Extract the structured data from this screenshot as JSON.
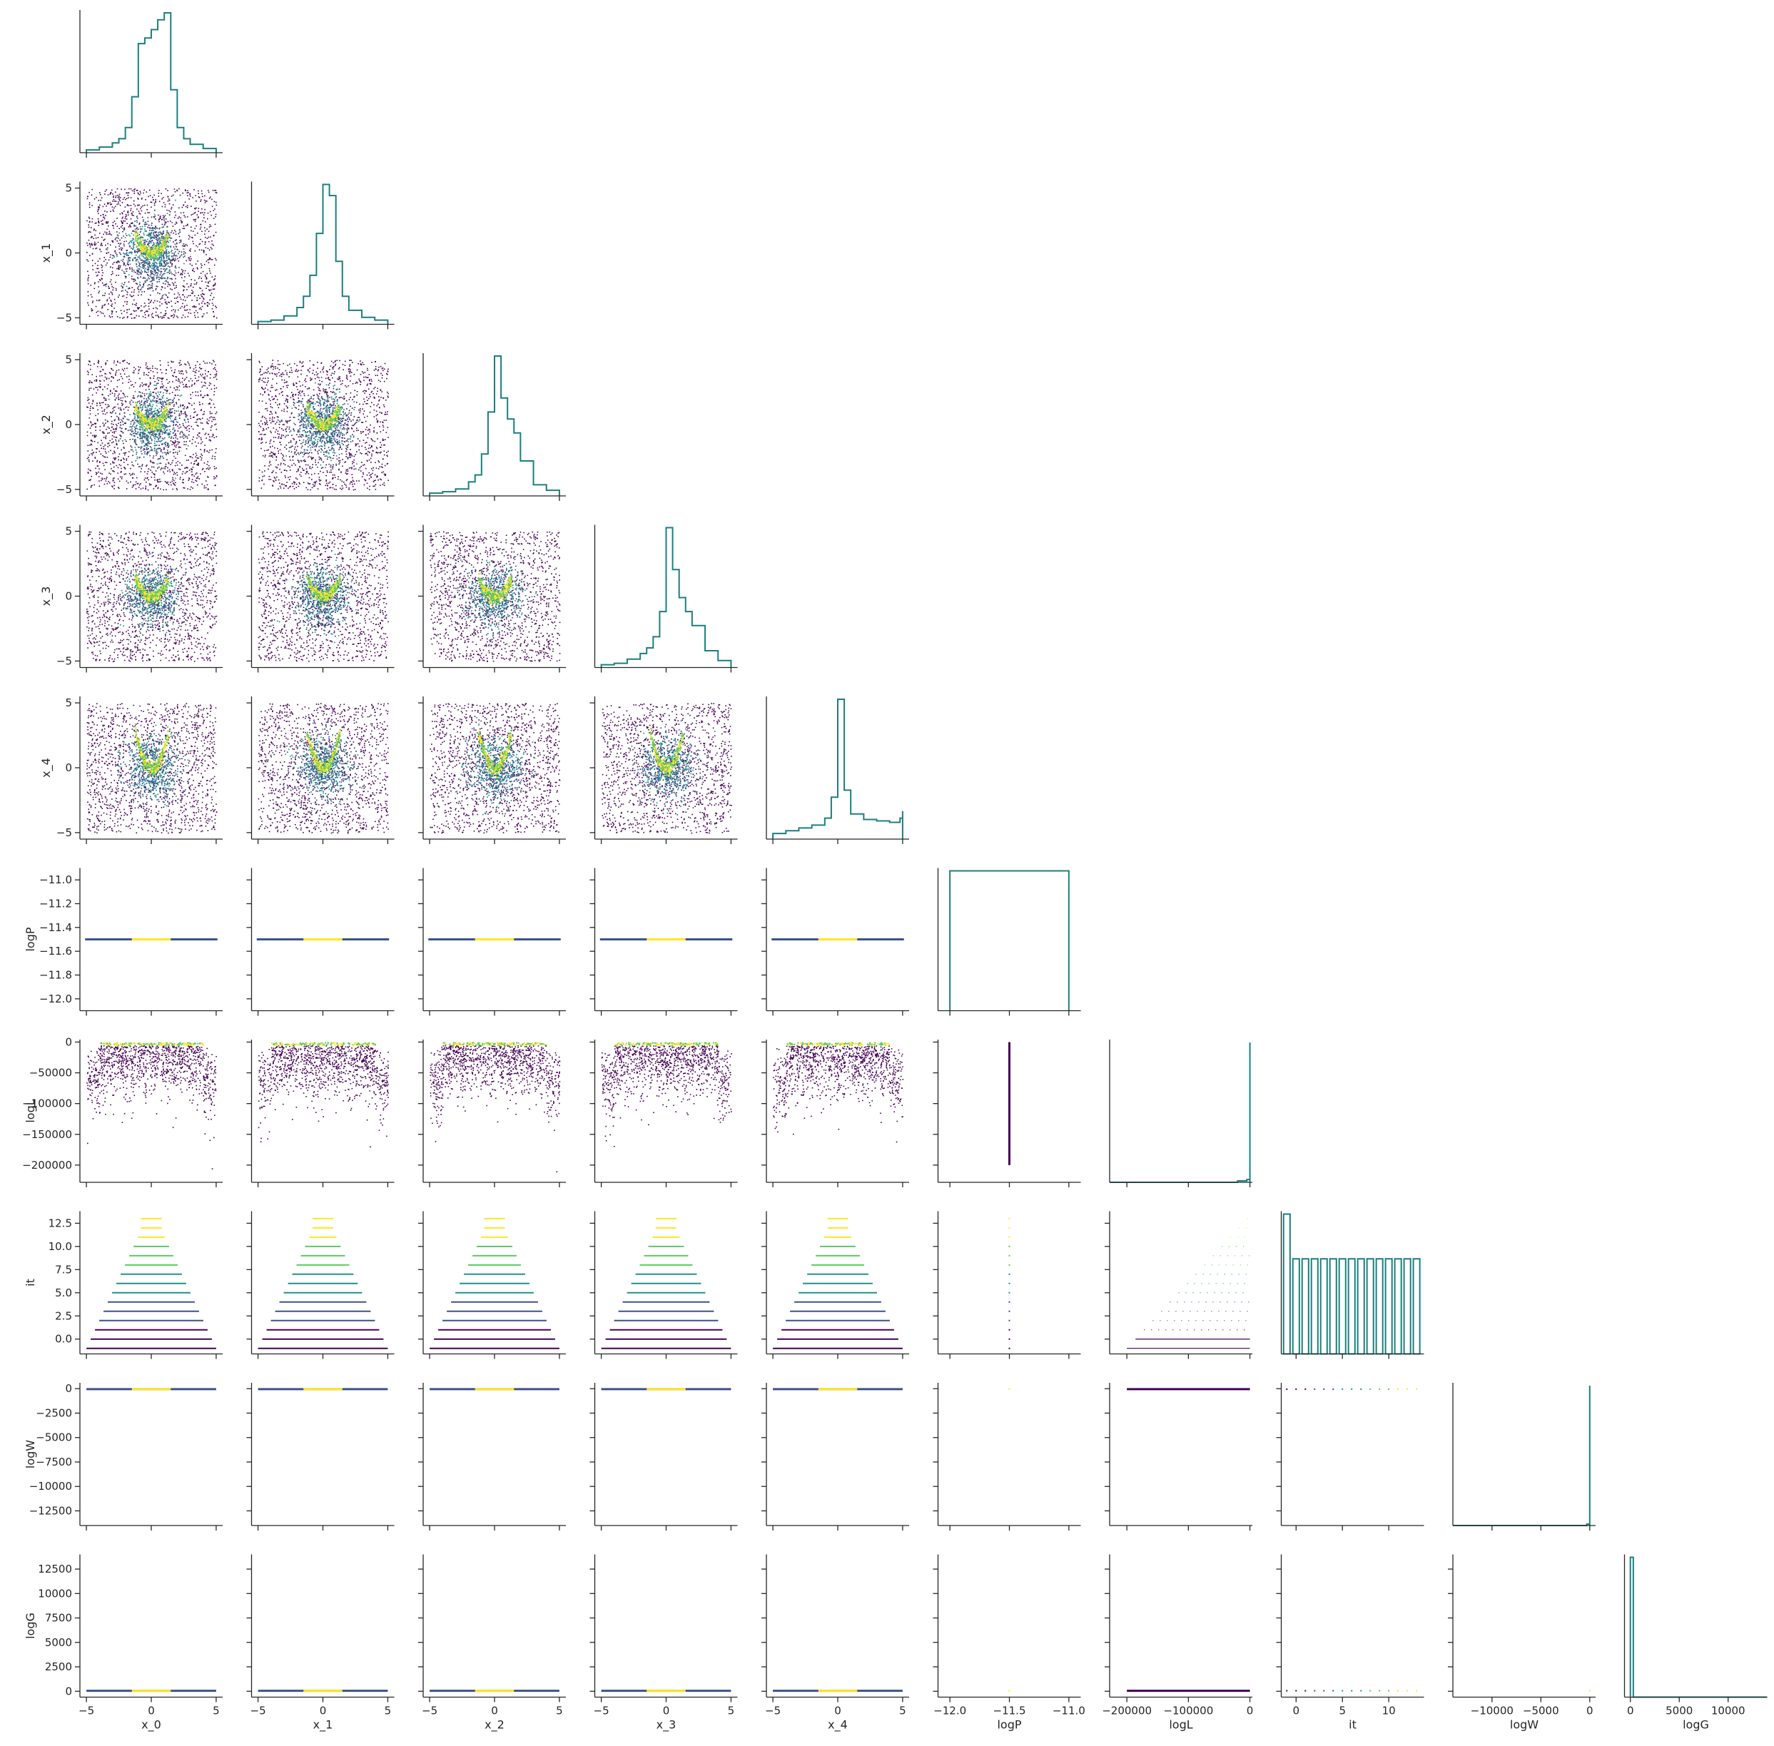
{
  "chart_data": {
    "type": "scatter",
    "variant": "pairplot-corner",
    "variables": [
      "x_0",
      "x_1",
      "x_2",
      "x_3",
      "x_4",
      "logP",
      "logL",
      "it",
      "logW",
      "logG"
    ],
    "axes": {
      "x_0": {
        "lim": [
          -5.5,
          5.5
        ],
        "ticks": [
          -5,
          0,
          5
        ],
        "tick_labels": [
          "−5",
          "0",
          "5"
        ]
      },
      "x_1": {
        "lim": [
          -5.5,
          5.5
        ],
        "ticks": [
          -5,
          0,
          5
        ],
        "tick_labels": [
          "−5",
          "0",
          "5"
        ]
      },
      "x_2": {
        "lim": [
          -5.5,
          5.5
        ],
        "ticks": [
          -5,
          0,
          5
        ],
        "tick_labels": [
          "−5",
          "0",
          "5"
        ]
      },
      "x_3": {
        "lim": [
          -5.5,
          5.5
        ],
        "ticks": [
          -5,
          0,
          5
        ],
        "tick_labels": [
          "−5",
          "0",
          "5"
        ]
      },
      "x_4": {
        "lim": [
          -5.5,
          5.5
        ],
        "ticks": [
          -5,
          0,
          5
        ],
        "tick_labels": [
          "−5",
          "0",
          "5"
        ]
      },
      "logP": {
        "lim": [
          -12.1,
          -10.9
        ],
        "ticks": [
          -12.0,
          -11.5,
          -11.0
        ],
        "tick_labels": [
          "−12.0",
          "−11.5",
          "−11.0"
        ],
        "y_ticks": [
          -12.0,
          -11.8,
          -11.6,
          -11.4,
          -11.2,
          -11.0
        ],
        "y_tick_labels": [
          "−12.0",
          "−11.8",
          "−11.6",
          "−11.4",
          "−11.2",
          "−11.0"
        ]
      },
      "logL": {
        "lim": [
          -228000,
          4000
        ],
        "ticks": [
          -200000,
          -100000,
          0
        ],
        "tick_labels": [
          "−200000",
          "−100000",
          "0"
        ],
        "y_ticks": [
          -200000,
          -150000,
          -100000,
          -50000,
          0
        ],
        "y_tick_labels": [
          "−200000",
          "−150000",
          "−100000",
          "−50000",
          "0"
        ]
      },
      "it": {
        "lim": [
          -1.6,
          13.8
        ],
        "ticks": [
          0,
          5,
          10
        ],
        "tick_labels": [
          "0",
          "5",
          "10"
        ],
        "y_ticks": [
          0,
          2.5,
          5,
          7.5,
          10,
          12.5
        ],
        "y_tick_labels": [
          "0.0",
          "2.5",
          "5.0",
          "7.5",
          "10.0",
          "12.5"
        ]
      },
      "logW": {
        "lim": [
          -14000,
          600
        ],
        "ticks": [
          -10000,
          -5000,
          0
        ],
        "tick_labels": [
          "−10000",
          "−5000",
          "0"
        ],
        "y_ticks": [
          -12500,
          -10000,
          -7500,
          -5000,
          -2500,
          0
        ],
        "y_tick_labels": [
          "−12500",
          "−10000",
          "−7500",
          "−5000",
          "−2500",
          "0"
        ]
      },
      "logG": {
        "lim": [
          -600,
          14000
        ],
        "ticks": [
          0,
          5000,
          10000
        ],
        "tick_labels": [
          "0",
          "5000",
          "10000"
        ],
        "y_ticks": [
          0,
          2500,
          5000,
          7500,
          10000,
          12500
        ],
        "y_tick_labels": [
          "0",
          "2500",
          "5000",
          "7500",
          "10000",
          "12500"
        ]
      }
    },
    "diagonal": {
      "type": "step-histogram",
      "color": "#1b7f7f",
      "x_0": {
        "x": [
          -5,
          -4,
          -3,
          -2.5,
          -2,
          -1.5,
          -1,
          -0.5,
          0,
          0.5,
          1,
          1.5,
          2,
          2.5,
          3,
          4,
          5
        ],
        "density": [
          0.02,
          0.04,
          0.07,
          0.1,
          0.18,
          0.4,
          0.78,
          0.82,
          0.88,
          0.95,
          1.0,
          0.45,
          0.18,
          0.1,
          0.06,
          0.03,
          0.02
        ]
      },
      "x_1": {
        "x": [
          -5,
          -4,
          -3,
          -2,
          -1.5,
          -1,
          -0.5,
          0,
          0.5,
          1,
          1.5,
          2,
          3,
          4,
          5
        ],
        "density": [
          0.02,
          0.03,
          0.06,
          0.12,
          0.2,
          0.35,
          0.65,
          1.0,
          0.92,
          0.45,
          0.2,
          0.1,
          0.05,
          0.03,
          0.02
        ]
      },
      "x_2": {
        "x": [
          -5,
          -4,
          -3,
          -2,
          -1.5,
          -1,
          -0.5,
          0,
          0.5,
          1,
          1.5,
          2,
          3,
          4,
          5
        ],
        "density": [
          0.02,
          0.03,
          0.05,
          0.1,
          0.15,
          0.3,
          0.6,
          1.0,
          0.7,
          0.55,
          0.45,
          0.25,
          0.08,
          0.04,
          0.02
        ]
      },
      "x_3": {
        "x": [
          -5,
          -4,
          -3,
          -2,
          -1.5,
          -1,
          -0.5,
          0,
          0.5,
          1,
          1.5,
          2,
          3,
          4,
          5
        ],
        "density": [
          0.02,
          0.03,
          0.06,
          0.1,
          0.14,
          0.22,
          0.4,
          1.0,
          0.7,
          0.5,
          0.4,
          0.3,
          0.12,
          0.05,
          0.02
        ]
      },
      "x_4": {
        "x": [
          -5,
          -4,
          -3,
          -2,
          -1,
          -0.5,
          0,
          0.5,
          1,
          2,
          3,
          4,
          4.8,
          5
        ],
        "density": [
          0.04,
          0.06,
          0.08,
          0.1,
          0.15,
          0.3,
          1.0,
          0.35,
          0.18,
          0.14,
          0.13,
          0.12,
          0.15,
          0.2
        ]
      },
      "logP": {
        "x": [
          -12.0,
          -11.0
        ],
        "density": [
          1.0,
          1.0
        ]
      },
      "logL": {
        "x": [
          -228000,
          -100000,
          -20000,
          -5000,
          0
        ],
        "density": [
          0.0,
          0.0,
          0.01,
          0.02,
          1.0
        ]
      },
      "it": {
        "x": [
          -1,
          0,
          1,
          2,
          3,
          4,
          5,
          6,
          7,
          8,
          9,
          10,
          11,
          12,
          13
        ],
        "density": [
          1.0,
          0.68,
          0.68,
          0.68,
          0.68,
          0.68,
          0.68,
          0.68,
          0.68,
          0.68,
          0.68,
          0.68,
          0.68,
          0.68,
          0.68
        ]
      },
      "logW": {
        "x": [
          -14000,
          -300,
          0
        ],
        "density": [
          0.0,
          0.01,
          1.0
        ]
      },
      "logG": {
        "x": [
          0,
          300,
          14000
        ],
        "density": [
          1.0,
          0.0,
          0.0
        ]
      }
    },
    "scatter": {
      "colormap": "viridis",
      "colors": [
        "#440154",
        "#3b528b",
        "#21918c",
        "#5ec962",
        "#fde725"
      ],
      "notes": "lower-triangle point clouds; density-coloured samples"
    }
  }
}
